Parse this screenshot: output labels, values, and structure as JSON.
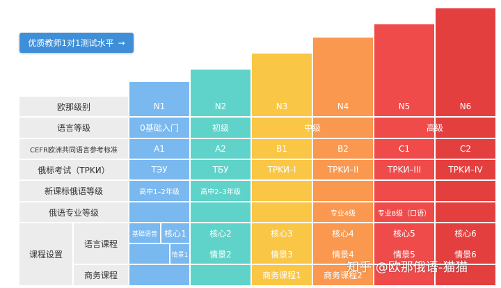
{
  "cta": {
    "label": "优质教师1对1测试水平",
    "arrow": "→"
  },
  "colors": {
    "c1": "#7ab8f0",
    "c2": "#5fd3c9",
    "c3": "#f9c646",
    "c4": "#f9984e",
    "c5": "#ef4b4b",
    "c6": "#e33f3f",
    "label_bg": "#ececec",
    "cta_bg": "#3f8fd8"
  },
  "rows": {
    "cefr_level": "欧那级别",
    "language_grade": "语言等级",
    "cefr_standard": "CEFR欧洲共同语言参考标准",
    "trki": "俄标考试（TPKИ）",
    "new_curriculum": "新课标俄语等级",
    "major_grade": "俄语专业等级",
    "course_setting": "课程设置",
    "language_course": "语言课程",
    "business_course": "商务课程"
  },
  "levels": [
    "N1",
    "N2",
    "N3",
    "N4",
    "N5",
    "N6"
  ],
  "grades": {
    "g1": "0基础入门",
    "g2": "初级",
    "g3": "中级",
    "g4": "高级"
  },
  "cefr": [
    "A1",
    "A2",
    "B1",
    "B2",
    "C1",
    "C2"
  ],
  "trki": [
    "TЭУ",
    "TБУ",
    "TPKИ–I",
    "TPKИ–II",
    "TPKИ–III",
    "TPKИ–IV"
  ],
  "curriculum": {
    "c1": "高中1–2年级",
    "c2": "高中2–3年级"
  },
  "major": {
    "m4": "专业4级",
    "m5": "专业8级（口语）"
  },
  "course": {
    "basic": "基础语音",
    "core1": "核心1",
    "core2": "核心2",
    "core3": "核心3",
    "core4": "核心4",
    "core5": "核心5",
    "core6": "核心6",
    "scene1": "情景1",
    "scene2": "情景2",
    "scene3": "情景3",
    "scene4": "情景4",
    "scene5": "情景5",
    "scene6": "情景6",
    "biz1": "商务课程1",
    "biz2": "商务课程2"
  },
  "watermark": "知乎 @欧那俄语-猫猫"
}
